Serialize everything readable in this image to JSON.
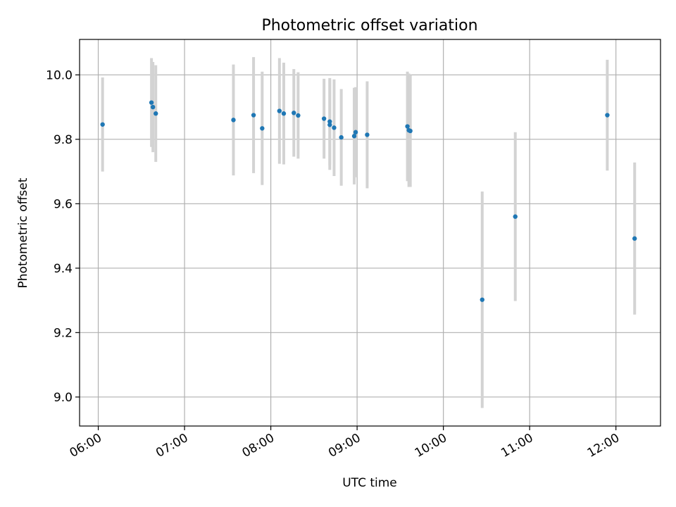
{
  "chart_data": {
    "type": "scatter",
    "title": "Photometric offset variation",
    "xlabel": "UTC time",
    "ylabel": "Photometric offset",
    "x_ticks": [
      "06:00",
      "07:00",
      "08:00",
      "09:00",
      "10:00",
      "11:00",
      "12:00"
    ],
    "y_ticks": [
      "9.0",
      "9.2",
      "9.4",
      "9.6",
      "9.8",
      "10.0"
    ],
    "xlim": [
      "05:47",
      "12:31"
    ],
    "ylim": [
      8.91,
      10.11
    ],
    "grid": true,
    "colors": {
      "points": "#1f77b4",
      "error_bars": "#d3d3d3"
    },
    "series": [
      {
        "error_bars": "yerr",
        "points": [
          {
            "x": "06:03",
            "y": 9.846,
            "yerr": 0.146
          },
          {
            "x": "06:37",
            "y": 9.914,
            "yerr": 0.138
          },
          {
            "x": "06:38",
            "y": 9.9,
            "yerr": 0.14
          },
          {
            "x": "06:40",
            "y": 9.88,
            "yerr": 0.15
          },
          {
            "x": "07:34",
            "y": 9.86,
            "yerr": 0.172
          },
          {
            "x": "07:48",
            "y": 9.875,
            "yerr": 0.18
          },
          {
            "x": "07:54",
            "y": 9.834,
            "yerr": 0.176
          },
          {
            "x": "08:06",
            "y": 9.888,
            "yerr": 0.164
          },
          {
            "x": "08:09",
            "y": 9.88,
            "yerr": 0.158
          },
          {
            "x": "08:16",
            "y": 9.882,
            "yerr": 0.136
          },
          {
            "x": "08:19",
            "y": 9.874,
            "yerr": 0.134
          },
          {
            "x": "08:37",
            "y": 9.864,
            "yerr": 0.124
          },
          {
            "x": "08:41",
            "y": 9.855,
            "yerr": 0.135
          },
          {
            "x": "08:41",
            "y": 9.845,
            "yerr": 0.14
          },
          {
            "x": "08:44",
            "y": 9.836,
            "yerr": 0.15
          },
          {
            "x": "08:49",
            "y": 9.806,
            "yerr": 0.15
          },
          {
            "x": "08:58",
            "y": 9.81,
            "yerr": 0.15
          },
          {
            "x": "08:59",
            "y": 9.822,
            "yerr": 0.14
          },
          {
            "x": "09:07",
            "y": 9.814,
            "yerr": 0.166
          },
          {
            "x": "09:35",
            "y": 9.84,
            "yerr": 0.17
          },
          {
            "x": "09:36",
            "y": 9.828,
            "yerr": 0.176
          },
          {
            "x": "09:37",
            "y": 9.826,
            "yerr": 0.174
          },
          {
            "x": "10:27",
            "y": 9.302,
            "yerr": 0.336
          },
          {
            "x": "10:50",
            "y": 9.56,
            "yerr": 0.262
          },
          {
            "x": "11:54",
            "y": 9.875,
            "yerr": 0.172
          },
          {
            "x": "12:13",
            "y": 9.492,
            "yerr": 0.236
          }
        ]
      }
    ]
  }
}
